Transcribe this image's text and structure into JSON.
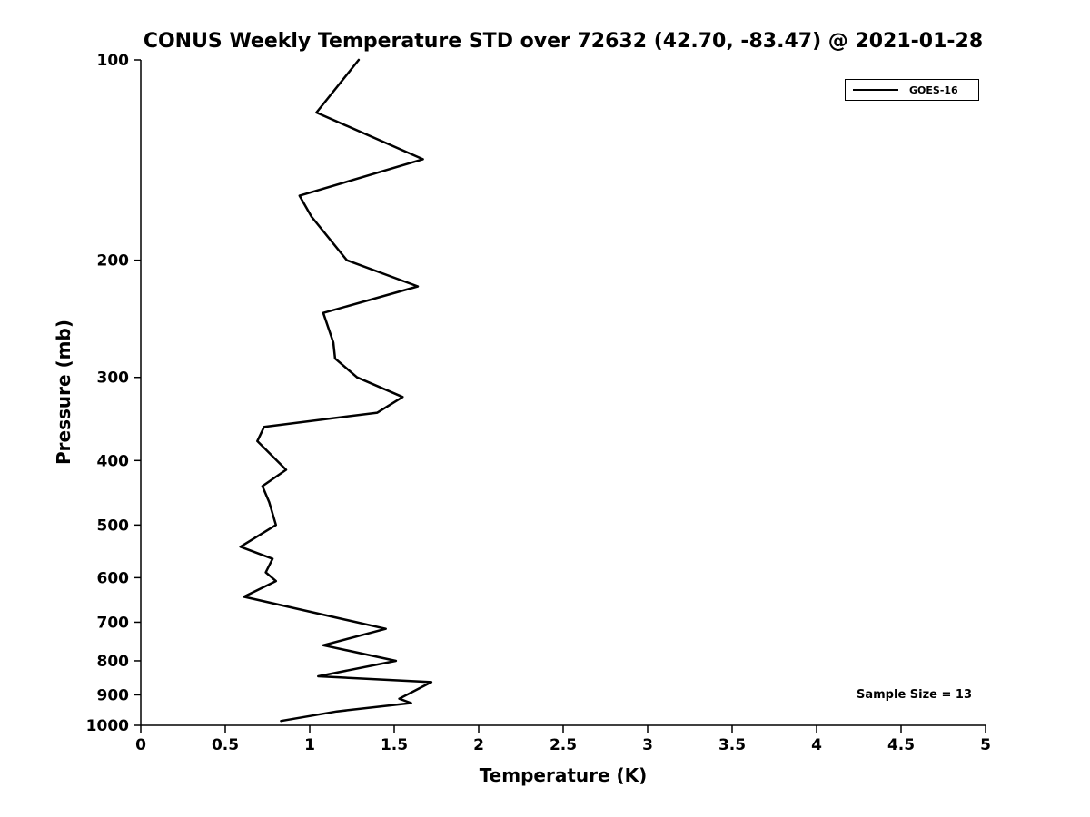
{
  "chart_data": {
    "type": "line",
    "title": "CONUS Weekly Temperature STD over 72632 (42.70, -83.47) @ 2021-01-28",
    "xlabel": "Temperature (K)",
    "ylabel": "Pressure (mb)",
    "xlim": [
      0,
      5
    ],
    "ylim": [
      100,
      1000
    ],
    "yscale": "log",
    "y_inverted": true,
    "grid": false,
    "xticks": [
      0,
      0.5,
      1,
      1.5,
      2,
      2.5,
      3,
      3.5,
      4,
      4.5,
      5
    ],
    "yticks": [
      100,
      200,
      300,
      400,
      500,
      600,
      700,
      800,
      900,
      1000
    ],
    "legend": {
      "position": "top-right",
      "entries": [
        {
          "label": "GOES-16",
          "color": "#000000"
        }
      ]
    },
    "annotation": "Sample Size = 13",
    "series": [
      {
        "name": "GOES-16",
        "color": "#000000",
        "line_width": 2.5,
        "pressure_mb": [
          100,
          120,
          141,
          160,
          172,
          200,
          219,
          240,
          266,
          281,
          300,
          321,
          339,
          356,
          374,
          413,
          437,
          462,
          500,
          539,
          562,
          589,
          607,
          641,
          716,
          758,
          800,
          844,
          861,
          912,
          926,
          953,
          985
        ],
        "temperature_std_K": [
          1.29,
          1.04,
          1.67,
          0.94,
          1.01,
          1.22,
          1.64,
          1.08,
          1.14,
          1.15,
          1.28,
          1.55,
          1.4,
          0.73,
          0.69,
          0.86,
          0.72,
          0.76,
          0.8,
          0.59,
          0.78,
          0.74,
          0.8,
          0.61,
          1.45,
          1.08,
          1.51,
          1.05,
          1.72,
          1.53,
          1.6,
          1.16,
          0.83
        ]
      }
    ]
  }
}
